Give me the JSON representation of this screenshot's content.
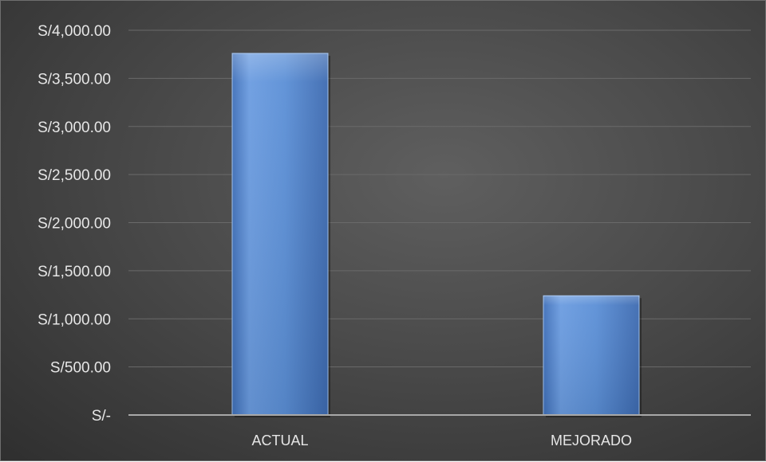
{
  "chart_data": {
    "type": "bar",
    "categories": [
      "ACTUAL",
      "MEJORADO"
    ],
    "values": [
      3760,
      1240
    ],
    "ylim": [
      0,
      4000
    ],
    "yticks": [
      0,
      500,
      1000,
      1500,
      2000,
      2500,
      3000,
      3500,
      4000
    ],
    "ytick_labels": [
      "S/-",
      "S/500.00",
      "S/1,000.00",
      "S/1,500.00",
      "S/2,000.00",
      "S/2,500.00",
      "S/3,000.00",
      "S/3,500.00",
      "S/4,000.00"
    ],
    "title": "",
    "xlabel": "",
    "ylabel": "",
    "grid": true,
    "legend": "none",
    "colors": {
      "bar": "#5b8fd6",
      "gridline": "#6a6a6a",
      "axis": "#a8a8a8",
      "text": "#e6e6e6"
    }
  }
}
